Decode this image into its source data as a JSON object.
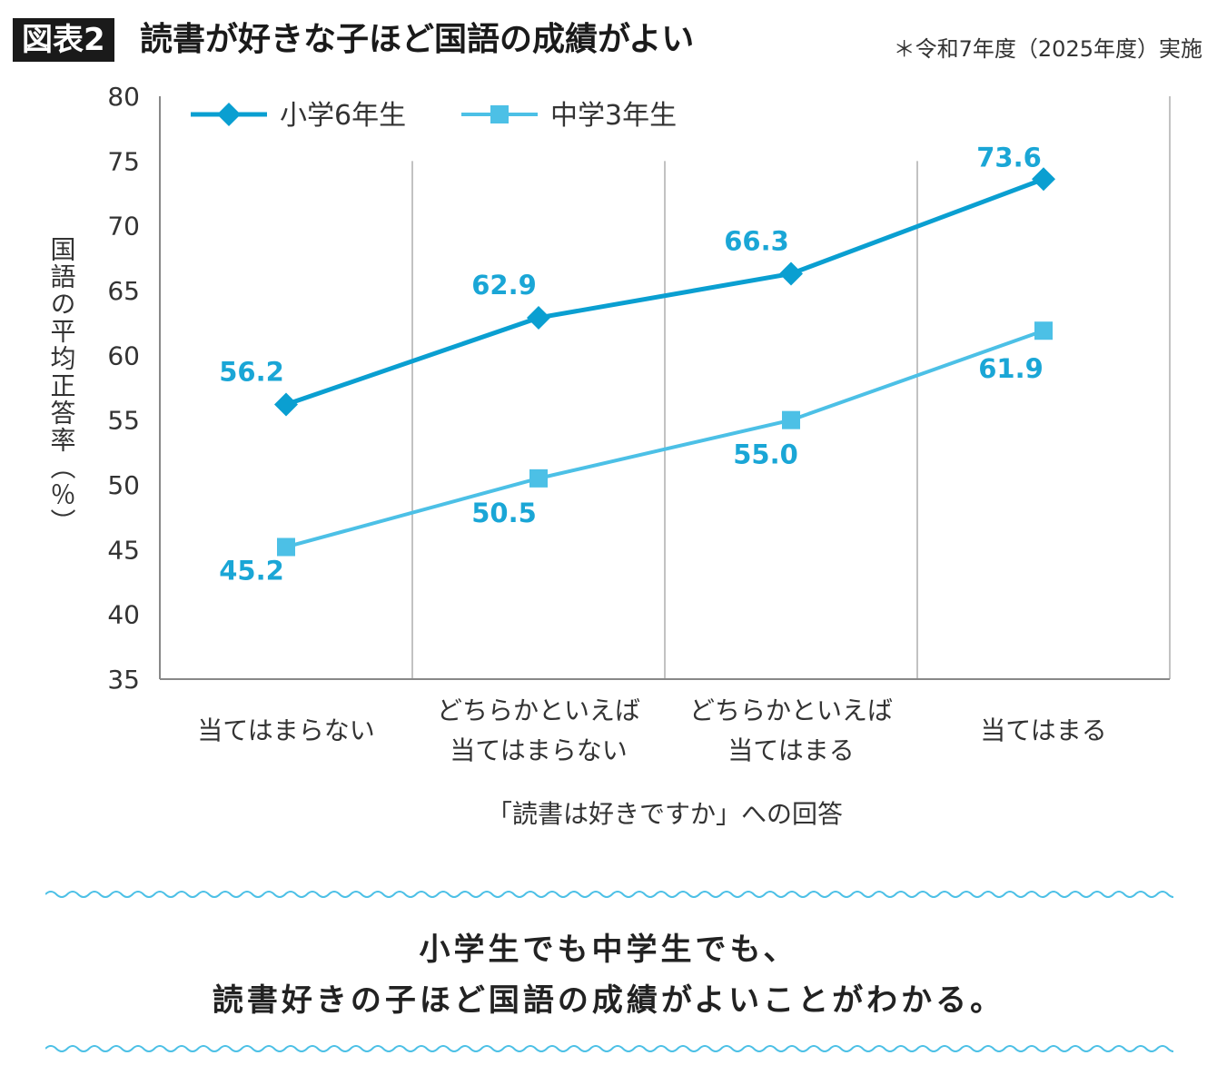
{
  "header": {
    "figure_label": "図表2",
    "title": "読書が好きな子ほど国語の成績がよい",
    "note": "＊令和7年度（2025年度）実施"
  },
  "chart_data": {
    "type": "line",
    "categories": [
      [
        "当てはまらない"
      ],
      [
        "どちらかといえば",
        "当てはまらない"
      ],
      [
        "どちらかといえば",
        "当てはまる"
      ],
      [
        "当てはまる"
      ]
    ],
    "series": [
      {
        "name": "小学6年生",
        "values": [
          56.2,
          62.9,
          66.3,
          73.6
        ],
        "labels": [
          "56.2",
          "62.9",
          "66.3",
          "73.6"
        ],
        "marker": "diamond",
        "color": "#0a9fd1"
      },
      {
        "name": "中学3年生",
        "values": [
          45.2,
          50.5,
          55.0,
          61.9
        ],
        "labels": [
          "45.2",
          "50.5",
          "55.0",
          "61.9"
        ],
        "marker": "square",
        "color": "#4cc0e6"
      }
    ],
    "ylabel": "国語の平均正答率（％）",
    "xlabel": "「読書は好きですか」への回答",
    "ylim": [
      35,
      80
    ],
    "yticks": [
      35,
      40,
      45,
      50,
      55,
      60,
      65,
      70,
      75,
      80
    ],
    "grid": "vertical category separators",
    "legend": "top-left",
    "label_color": "#1aa6d6"
  },
  "summary": {
    "line1": "小学生でも中学生でも、",
    "line2": "読書好きの子ほど国語の成績がよいことがわかる。"
  }
}
